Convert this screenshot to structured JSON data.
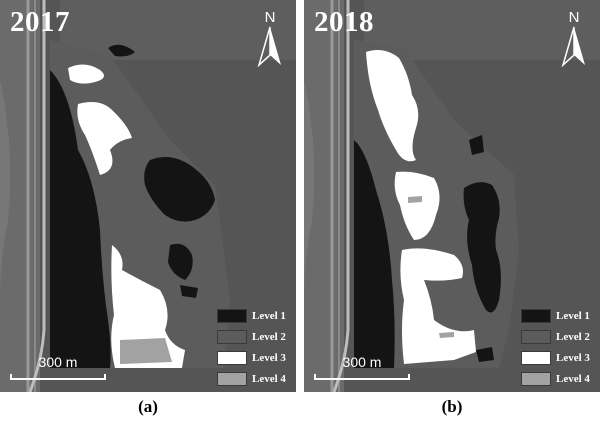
{
  "colors": {
    "level_1": "#141414",
    "level_2": "#5c5c5c",
    "level_3": "#ffffff",
    "level_4": "#a2a2a2",
    "background_satellite": "#565656"
  },
  "north_arrow": {
    "label": "N"
  },
  "scale_bar": {
    "label": "300 m"
  },
  "legend": [
    {
      "label": "Level 1",
      "color": "#141414"
    },
    {
      "label": "Level 2",
      "color": "#5c5c5c"
    },
    {
      "label": "Level 3",
      "color": "#ffffff"
    },
    {
      "label": "Level 4",
      "color": "#a2a2a2"
    }
  ],
  "panels": [
    {
      "year": "2017",
      "caption": "(a)"
    },
    {
      "year": "2018",
      "caption": "(b)"
    }
  ]
}
